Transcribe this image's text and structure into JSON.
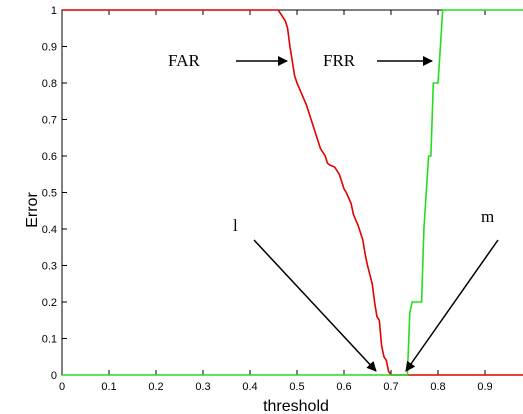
{
  "chart_data": {
    "type": "line",
    "title": "",
    "xlabel": "threshold",
    "ylabel": "Error",
    "xlim": [
      0,
      1
    ],
    "ylim": [
      0,
      1
    ],
    "x_ticks": [
      0,
      0.1,
      0.2,
      0.3,
      0.4,
      0.5,
      0.6,
      0.7,
      0.8,
      0.9,
      1
    ],
    "x_tick_labels": [
      "0",
      "0.1",
      "0.2",
      "0.3",
      "0.4",
      "0.5",
      "0.6",
      "0.7",
      "0.8",
      "0.9",
      "1"
    ],
    "y_ticks": [
      0,
      0.1,
      0.2,
      0.3,
      0.4,
      0.5,
      0.6,
      0.7,
      0.8,
      0.9,
      1
    ],
    "y_tick_labels": [
      "0",
      "0.1",
      "0.2",
      "0.3",
      "0.4",
      "0.5",
      "0.6",
      "0.7",
      "0.8",
      "0.9",
      "1"
    ],
    "grid": false,
    "series": [
      {
        "color": "#e00000",
        "x": [
          0,
          0.46,
          0.475,
          0.48,
          0.485,
          0.49,
          0.495,
          0.5,
          0.51,
          0.52,
          0.53,
          0.54,
          0.55,
          0.56,
          0.565,
          0.57,
          0.58,
          0.59,
          0.6,
          0.605,
          0.615,
          0.62,
          0.63,
          0.64,
          0.645,
          0.65,
          0.66,
          0.665,
          0.67,
          0.675,
          0.68,
          0.685,
          0.69,
          0.695,
          0.7,
          1.0
        ],
        "y": [
          1.0,
          1.0,
          0.97,
          0.95,
          0.9,
          0.86,
          0.82,
          0.8,
          0.77,
          0.74,
          0.7,
          0.66,
          0.62,
          0.6,
          0.58,
          0.575,
          0.57,
          0.55,
          0.51,
          0.5,
          0.47,
          0.44,
          0.41,
          0.37,
          0.33,
          0.3,
          0.25,
          0.2,
          0.16,
          0.15,
          0.08,
          0.05,
          0.04,
          0.01,
          0.0,
          0.0
        ]
      },
      {
        "color": "#22dd22",
        "x": [
          0,
          0.72,
          0.735,
          0.74,
          0.745,
          0.765,
          0.77,
          0.78,
          0.785,
          0.79,
          0.795,
          0.8,
          0.805,
          0.81,
          1.0
        ],
        "y": [
          0.0,
          0.0,
          0.0,
          0.17,
          0.2,
          0.2,
          0.4,
          0.6,
          0.6,
          0.8,
          0.8,
          0.8,
          0.9,
          1.0,
          1.0
        ]
      }
    ],
    "annotations": [
      {
        "id": "far",
        "text": "FAR",
        "point": [
          0.49,
          0.855
        ]
      },
      {
        "id": "frr",
        "text": "FRR",
        "point": [
          0.81,
          0.855
        ]
      },
      {
        "id": "l",
        "text": "l",
        "point": [
          0.7,
          0.0
        ]
      },
      {
        "id": "m",
        "text": "m",
        "point": [
          0.74,
          0.0
        ]
      }
    ]
  }
}
